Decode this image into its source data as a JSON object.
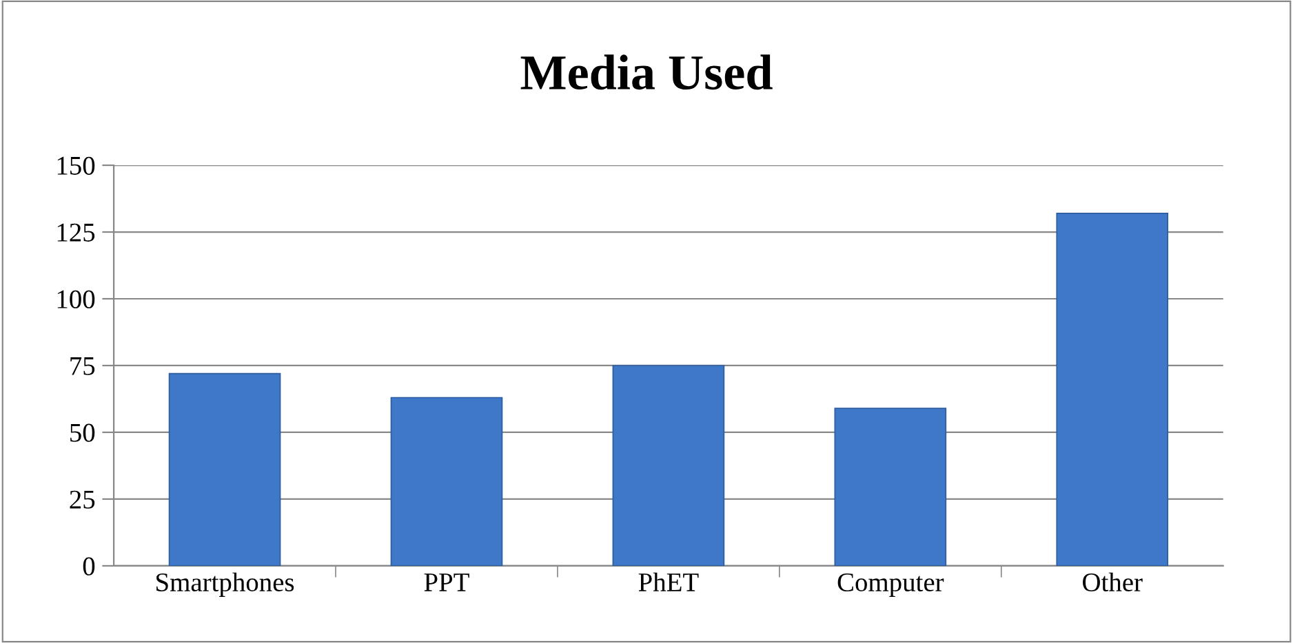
{
  "chart_data": {
    "type": "bar",
    "title": "Media Used",
    "categories": [
      "Smartphones",
      "PPT",
      "PhET",
      "Computer",
      "Other"
    ],
    "values": [
      72,
      63,
      75,
      59,
      132
    ],
    "color": "#3f78c8",
    "ylim": [
      0,
      150
    ],
    "yticks": [
      0,
      25,
      50,
      75,
      100,
      125,
      150
    ],
    "grid": "y",
    "legend": false
  }
}
